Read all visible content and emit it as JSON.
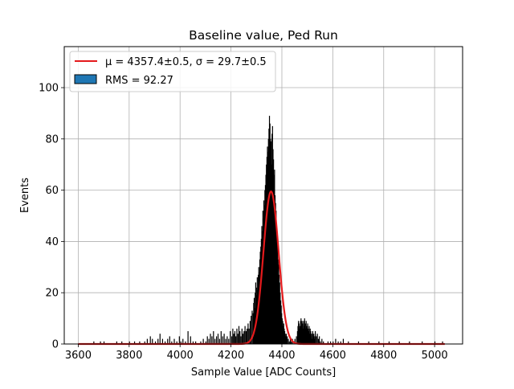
{
  "chart_data": {
    "type": "histogram",
    "title": "Baseline value, Ped Run",
    "xlabel": "Sample Value [ADC Counts]",
    "ylabel": "Events",
    "xlim": [
      3545,
      5110
    ],
    "ylim": [
      0,
      116
    ],
    "x_ticks": [
      "3600",
      "3800",
      "4000",
      "4200",
      "4400",
      "4600",
      "4800",
      "5000"
    ],
    "y_ticks": [
      "0",
      "20",
      "40",
      "60",
      "80",
      "100"
    ],
    "grid": true,
    "legend_position": "top-left",
    "legend": {
      "fit_label": "μ = 4357.4±0.5, σ = 29.7±0.5",
      "hist_label": "RMS = 92.27"
    },
    "fit": {
      "type": "gaussian",
      "mu": 4357.4,
      "sigma": 29.7,
      "amplitude": 59.5,
      "x_range": [
        3600,
        5040
      ],
      "color": "#e41a1c"
    },
    "histogram": {
      "bin_width": 2,
      "fill_color": "#000000",
      "legend_patch_color": "#1f77b4",
      "bins": [
        [
          3660,
          1
        ],
        [
          3686,
          1
        ],
        [
          3700,
          1
        ],
        [
          3750,
          1
        ],
        [
          3770,
          1
        ],
        [
          3800,
          1
        ],
        [
          3820,
          1
        ],
        [
          3840,
          1
        ],
        [
          3860,
          1
        ],
        [
          3870,
          2
        ],
        [
          3882,
          3
        ],
        [
          3890,
          2
        ],
        [
          3902,
          1
        ],
        [
          3912,
          2
        ],
        [
          3920,
          4
        ],
        [
          3930,
          2
        ],
        [
          3940,
          1
        ],
        [
          3950,
          2
        ],
        [
          3958,
          3
        ],
        [
          3966,
          1
        ],
        [
          3976,
          2
        ],
        [
          3986,
          1
        ],
        [
          3996,
          3
        ],
        [
          4002,
          1
        ],
        [
          4010,
          2
        ],
        [
          4020,
          1
        ],
        [
          4030,
          5
        ],
        [
          4040,
          3
        ],
        [
          4050,
          1
        ],
        [
          4060,
          1
        ],
        [
          4080,
          1
        ],
        [
          4090,
          2
        ],
        [
          4100,
          1
        ],
        [
          4106,
          3
        ],
        [
          4112,
          2
        ],
        [
          4118,
          4
        ],
        [
          4124,
          3
        ],
        [
          4130,
          5
        ],
        [
          4136,
          2
        ],
        [
          4142,
          3
        ],
        [
          4148,
          4
        ],
        [
          4154,
          2
        ],
        [
          4160,
          5
        ],
        [
          4166,
          3
        ],
        [
          4172,
          4
        ],
        [
          4178,
          2
        ],
        [
          4184,
          3
        ],
        [
          4190,
          2
        ],
        [
          4196,
          5
        ],
        [
          4202,
          3
        ],
        [
          4206,
          6
        ],
        [
          4210,
          4
        ],
        [
          4214,
          5
        ],
        [
          4218,
          3
        ],
        [
          4222,
          6
        ],
        [
          4226,
          4
        ],
        [
          4230,
          7
        ],
        [
          4234,
          5
        ],
        [
          4238,
          3
        ],
        [
          4242,
          6
        ],
        [
          4246,
          4
        ],
        [
          4250,
          5
        ],
        [
          4254,
          7
        ],
        [
          4258,
          5
        ],
        [
          4262,
          6
        ],
        [
          4266,
          8
        ],
        [
          4270,
          6
        ],
        [
          4274,
          9
        ],
        [
          4278,
          11
        ],
        [
          4282,
          13
        ],
        [
          4286,
          12
        ],
        [
          4288,
          16
        ],
        [
          4290,
          18
        ],
        [
          4292,
          14
        ],
        [
          4294,
          20
        ],
        [
          4296,
          24
        ],
        [
          4298,
          19
        ],
        [
          4300,
          22
        ],
        [
          4302,
          26
        ],
        [
          4304,
          21
        ],
        [
          4306,
          27
        ],
        [
          4308,
          30
        ],
        [
          4310,
          28
        ],
        [
          4312,
          33
        ],
        [
          4314,
          36
        ],
        [
          4316,
          38
        ],
        [
          4318,
          41
        ],
        [
          4320,
          46
        ],
        [
          4322,
          44
        ],
        [
          4324,
          52
        ],
        [
          4326,
          49
        ],
        [
          4328,
          56
        ],
        [
          4330,
          54
        ],
        [
          4332,
          60
        ],
        [
          4334,
          62
        ],
        [
          4336,
          66
        ],
        [
          4338,
          70
        ],
        [
          4340,
          73
        ],
        [
          4342,
          77
        ],
        [
          4344,
          75
        ],
        [
          4346,
          80
        ],
        [
          4348,
          84
        ],
        [
          4350,
          89
        ],
        [
          4352,
          86
        ],
        [
          4354,
          80
        ],
        [
          4356,
          79
        ],
        [
          4358,
          70
        ],
        [
          4360,
          82
        ],
        [
          4362,
          85
        ],
        [
          4364,
          76
        ],
        [
          4366,
          72
        ],
        [
          4368,
          66
        ],
        [
          4370,
          68
        ],
        [
          4372,
          58
        ],
        [
          4374,
          55
        ],
        [
          4376,
          52
        ],
        [
          4378,
          46
        ],
        [
          4380,
          42
        ],
        [
          4382,
          38
        ],
        [
          4384,
          33
        ],
        [
          4386,
          31
        ],
        [
          4388,
          27
        ],
        [
          4390,
          24
        ],
        [
          4392,
          20
        ],
        [
          4394,
          17
        ],
        [
          4396,
          15
        ],
        [
          4398,
          12
        ],
        [
          4400,
          10
        ],
        [
          4402,
          9
        ],
        [
          4404,
          7
        ],
        [
          4406,
          8
        ],
        [
          4408,
          6
        ],
        [
          4410,
          5
        ],
        [
          4412,
          4
        ],
        [
          4414,
          3
        ],
        [
          4416,
          4
        ],
        [
          4418,
          2
        ],
        [
          4420,
          3
        ],
        [
          4424,
          2
        ],
        [
          4428,
          1
        ],
        [
          4432,
          2
        ],
        [
          4436,
          1
        ],
        [
          4440,
          2
        ],
        [
          4446,
          1
        ],
        [
          4450,
          2
        ],
        [
          4456,
          3
        ],
        [
          4460,
          5
        ],
        [
          4462,
          7
        ],
        [
          4464,
          9
        ],
        [
          4466,
          8
        ],
        [
          4468,
          6
        ],
        [
          4470,
          7
        ],
        [
          4472,
          9
        ],
        [
          4474,
          10
        ],
        [
          4476,
          7
        ],
        [
          4478,
          9
        ],
        [
          4480,
          8
        ],
        [
          4482,
          6
        ],
        [
          4484,
          9
        ],
        [
          4486,
          7
        ],
        [
          4488,
          10
        ],
        [
          4490,
          8
        ],
        [
          4492,
          6
        ],
        [
          4494,
          9
        ],
        [
          4496,
          7
        ],
        [
          4498,
          6
        ],
        [
          4500,
          8
        ],
        [
          4502,
          6
        ],
        [
          4504,
          5
        ],
        [
          4506,
          7
        ],
        [
          4508,
          4
        ],
        [
          4510,
          6
        ],
        [
          4512,
          5
        ],
        [
          4514,
          3
        ],
        [
          4516,
          4
        ],
        [
          4518,
          2
        ],
        [
          4520,
          5
        ],
        [
          4522,
          3
        ],
        [
          4524,
          4
        ],
        [
          4526,
          2
        ],
        [
          4528,
          3
        ],
        [
          4530,
          5
        ],
        [
          4534,
          3
        ],
        [
          4538,
          4
        ],
        [
          4542,
          2
        ],
        [
          4546,
          3
        ],
        [
          4550,
          1
        ],
        [
          4556,
          2
        ],
        [
          4562,
          1
        ],
        [
          4580,
          1
        ],
        [
          4590,
          1
        ],
        [
          4600,
          1
        ],
        [
          4610,
          2
        ],
        [
          4620,
          1
        ],
        [
          4630,
          1
        ],
        [
          4640,
          2
        ],
        [
          4660,
          1
        ],
        [
          4700,
          1
        ],
        [
          4740,
          1
        ],
        [
          4780,
          1
        ],
        [
          4820,
          1
        ],
        [
          4860,
          1
        ],
        [
          4900,
          1
        ],
        [
          4950,
          1
        ],
        [
          5000,
          1
        ],
        [
          5030,
          1
        ]
      ]
    }
  }
}
